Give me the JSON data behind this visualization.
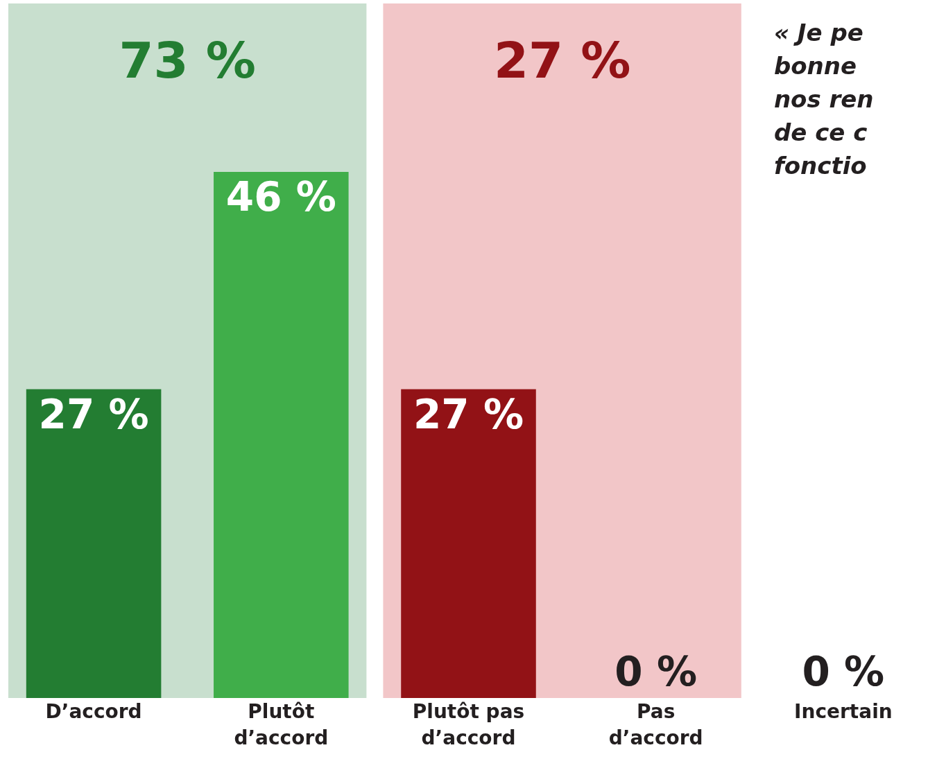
{
  "chart_data": {
    "type": "bar",
    "categories": [
      "D’accord",
      "Plutôt d’accord",
      "Plutôt pas d’accord",
      "Pas d’accord",
      "Incertain"
    ],
    "values": [
      27,
      46,
      27,
      0,
      0
    ],
    "colors": [
      "#237d32",
      "#40ae4a",
      "#921216",
      "#921216",
      "#231f20"
    ],
    "value_labels": [
      "27 %",
      "46 %",
      "27 %",
      "0 %",
      "0 %"
    ],
    "bands": [
      {
        "axis": "x",
        "from": "D’accord",
        "to": "Plutôt d’accord",
        "label": "73 %",
        "color": "#c8dfce"
      },
      {
        "axis": "x",
        "from": "Plutôt pas d’accord",
        "to": "Pas d’accord",
        "label": "27 %",
        "color": "#f2c6c8"
      }
    ],
    "annotations": [
      "« Je pe\nbonne\nnos ren\nde ce c\nfonctio"
    ],
    "relative": false,
    "grid": false,
    "legend": false
  }
}
